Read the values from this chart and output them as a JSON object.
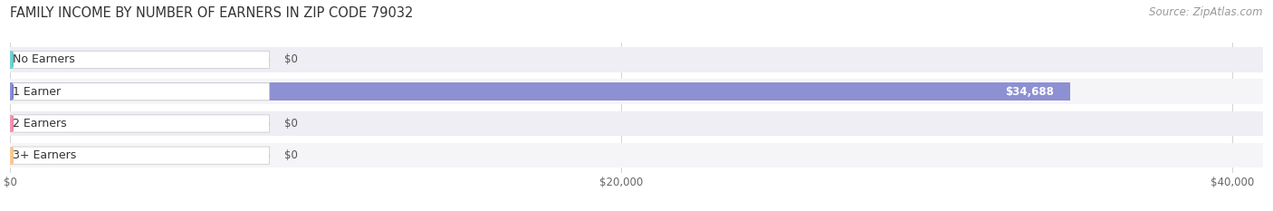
{
  "title": "FAMILY INCOME BY NUMBER OF EARNERS IN ZIP CODE 79032",
  "source": "Source: ZipAtlas.com",
  "categories": [
    "No Earners",
    "1 Earner",
    "2 Earners",
    "3+ Earners"
  ],
  "values": [
    0,
    34688,
    0,
    0
  ],
  "bar_colors": [
    "#5ecece",
    "#7b7fcc",
    "#f08aaa",
    "#f5c48a"
  ],
  "row_bg_even": "#eeeef4",
  "row_bg_odd": "#f5f5f8",
  "xlim": [
    0,
    41000
  ],
  "xticks": [
    0,
    20000,
    40000
  ],
  "xticklabels": [
    "$0",
    "$20,000",
    "$40,000"
  ],
  "title_fontsize": 10.5,
  "source_fontsize": 8.5,
  "bar_label_fontsize": 8.5,
  "category_fontsize": 9,
  "figsize": [
    14.06,
    2.33
  ],
  "dpi": 100
}
